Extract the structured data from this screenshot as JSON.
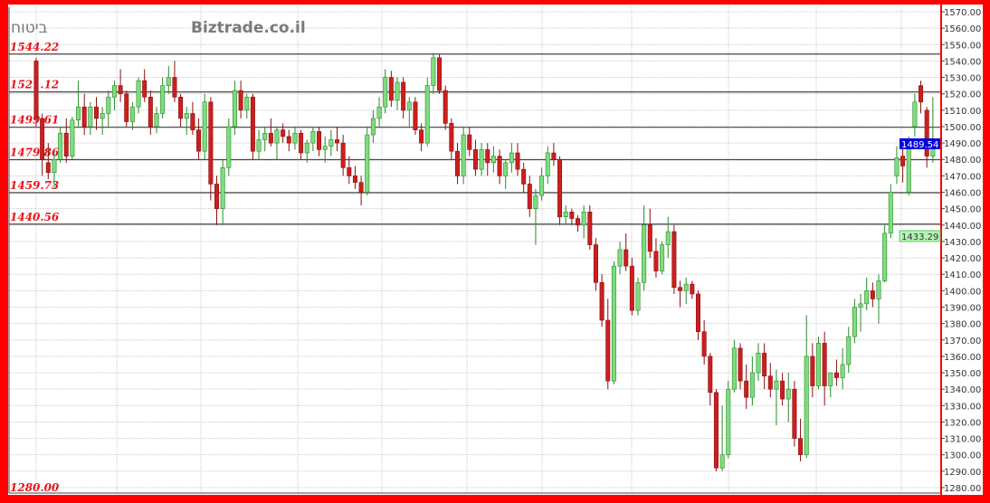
{
  "header": {
    "title": "ביטוח",
    "watermark": "Biztrade.co.il"
  },
  "chart_data": {
    "type": "candlestick",
    "ylim": [
      1280,
      1570
    ],
    "yticks": [
      1570,
      1560,
      1550,
      1540,
      1530,
      1520,
      1510,
      1500,
      1490,
      1480,
      1470,
      1460,
      1450,
      1440,
      1430,
      1420,
      1410,
      1400,
      1390,
      1380,
      1370,
      1360,
      1350,
      1340,
      1330,
      1320,
      1310,
      1300,
      1290,
      1280
    ],
    "grid": true,
    "levels": [
      1544.22,
      1521.12,
      1499.61,
      1479.86,
      1459.73,
      1440.56
    ],
    "level_labels": [
      "1544.22",
      "1521.12",
      "1499.61",
      "1479.86",
      "1459.73",
      "1440.56"
    ],
    "bottom_label": "1280.00",
    "last_price": {
      "label": "1489.54",
      "value": 1489.54,
      "color": "#0000dd"
    },
    "secondary_price": {
      "label": "1433.29",
      "value": 1433.29,
      "color": "#b4f5b4"
    },
    "colors": {
      "up": "#7fdc7f",
      "up_border": "#2a8a2a",
      "down": "#cc1f1f",
      "down_border": "#8a1010",
      "level_line": "#444444",
      "frame": "#ff0000"
    },
    "candles_ohlc": [
      [
        1540,
        1542,
        1500,
        1505
      ],
      [
        1505,
        1508,
        1470,
        1480
      ],
      [
        1478,
        1490,
        1468,
        1472
      ],
      [
        1472,
        1485,
        1462,
        1480
      ],
      [
        1480,
        1500,
        1478,
        1496
      ],
      [
        1496,
        1505,
        1478,
        1482
      ],
      [
        1482,
        1506,
        1480,
        1504
      ],
      [
        1504,
        1528,
        1500,
        1512
      ],
      [
        1512,
        1520,
        1495,
        1500
      ],
      [
        1500,
        1515,
        1495,
        1512
      ],
      [
        1512,
        1518,
        1498,
        1505
      ],
      [
        1505,
        1512,
        1495,
        1508
      ],
      [
        1508,
        1522,
        1500,
        1518
      ],
      [
        1518,
        1528,
        1510,
        1525
      ],
      [
        1525,
        1535,
        1515,
        1520
      ],
      [
        1520,
        1522,
        1500,
        1503
      ],
      [
        1503,
        1515,
        1498,
        1512
      ],
      [
        1512,
        1530,
        1508,
        1528
      ],
      [
        1528,
        1535,
        1515,
        1518
      ],
      [
        1518,
        1522,
        1495,
        1500
      ],
      [
        1500,
        1512,
        1496,
        1508
      ],
      [
        1508,
        1530,
        1505,
        1525
      ],
      [
        1525,
        1537,
        1520,
        1530
      ],
      [
        1530,
        1540,
        1515,
        1518
      ],
      [
        1518,
        1520,
        1500,
        1505
      ],
      [
        1505,
        1512,
        1495,
        1508
      ],
      [
        1508,
        1515,
        1495,
        1498
      ],
      [
        1498,
        1505,
        1480,
        1485
      ],
      [
        1485,
        1520,
        1480,
        1515
      ],
      [
        1515,
        1518,
        1455,
        1465
      ],
      [
        1465,
        1470,
        1440,
        1450
      ],
      [
        1450,
        1480,
        1440,
        1475
      ],
      [
        1475,
        1505,
        1470,
        1500
      ],
      [
        1500,
        1528,
        1495,
        1522
      ],
      [
        1522,
        1528,
        1505,
        1510
      ],
      [
        1510,
        1520,
        1505,
        1518
      ],
      [
        1518,
        1520,
        1480,
        1485
      ],
      [
        1485,
        1498,
        1480,
        1492
      ],
      [
        1492,
        1500,
        1485,
        1496
      ],
      [
        1496,
        1505,
        1488,
        1490
      ],
      [
        1490,
        1500,
        1480,
        1498
      ],
      [
        1498,
        1502,
        1490,
        1494
      ],
      [
        1494,
        1498,
        1485,
        1490
      ],
      [
        1490,
        1500,
        1486,
        1496
      ],
      [
        1496,
        1498,
        1480,
        1484
      ],
      [
        1484,
        1492,
        1478,
        1490
      ],
      [
        1490,
        1500,
        1485,
        1497
      ],
      [
        1497,
        1500,
        1482,
        1486
      ],
      [
        1486,
        1494,
        1478,
        1488
      ],
      [
        1488,
        1498,
        1482,
        1492
      ],
      [
        1492,
        1500,
        1485,
        1490
      ],
      [
        1490,
        1495,
        1470,
        1475
      ],
      [
        1475,
        1482,
        1465,
        1470
      ],
      [
        1470,
        1476,
        1462,
        1466
      ],
      [
        1466,
        1470,
        1452,
        1460
      ],
      [
        1460,
        1500,
        1458,
        1495
      ],
      [
        1495,
        1510,
        1490,
        1505
      ],
      [
        1505,
        1518,
        1500,
        1512
      ],
      [
        1512,
        1535,
        1508,
        1530
      ],
      [
        1530,
        1534,
        1512,
        1516
      ],
      [
        1516,
        1530,
        1510,
        1527
      ],
      [
        1527,
        1530,
        1505,
        1510
      ],
      [
        1510,
        1518,
        1500,
        1515
      ],
      [
        1515,
        1518,
        1495,
        1498
      ],
      [
        1498,
        1502,
        1485,
        1490
      ],
      [
        1490,
        1530,
        1488,
        1525
      ],
      [
        1525,
        1545,
        1520,
        1542
      ],
      [
        1542,
        1544,
        1520,
        1522
      ],
      [
        1522,
        1525,
        1498,
        1502
      ],
      [
        1502,
        1505,
        1480,
        1485
      ],
      [
        1485,
        1490,
        1465,
        1470
      ],
      [
        1470,
        1500,
        1465,
        1495
      ],
      [
        1495,
        1500,
        1482,
        1486
      ],
      [
        1486,
        1492,
        1470,
        1474
      ],
      [
        1474,
        1490,
        1470,
        1486
      ],
      [
        1486,
        1490,
        1470,
        1478
      ],
      [
        1478,
        1488,
        1472,
        1482
      ],
      [
        1482,
        1486,
        1465,
        1470
      ],
      [
        1470,
        1480,
        1462,
        1478
      ],
      [
        1478,
        1490,
        1472,
        1484
      ],
      [
        1484,
        1490,
        1470,
        1474
      ],
      [
        1474,
        1478,
        1460,
        1465
      ],
      [
        1465,
        1470,
        1445,
        1450
      ],
      [
        1450,
        1462,
        1428,
        1458
      ],
      [
        1458,
        1475,
        1455,
        1470
      ],
      [
        1470,
        1488,
        1465,
        1484
      ],
      [
        1484,
        1490,
        1476,
        1480
      ],
      [
        1480,
        1482,
        1440,
        1445
      ],
      [
        1445,
        1452,
        1440,
        1448
      ],
      [
        1448,
        1450,
        1440,
        1444
      ],
      [
        1444,
        1446,
        1436,
        1440
      ],
      [
        1440,
        1452,
        1432,
        1448
      ],
      [
        1448,
        1452,
        1425,
        1428
      ],
      [
        1428,
        1432,
        1400,
        1405
      ],
      [
        1405,
        1410,
        1378,
        1382
      ],
      [
        1382,
        1395,
        1340,
        1345
      ],
      [
        1345,
        1418,
        1343,
        1415
      ],
      [
        1415,
        1430,
        1410,
        1425
      ],
      [
        1425,
        1435,
        1412,
        1415
      ],
      [
        1415,
        1420,
        1385,
        1388
      ],
      [
        1388,
        1408,
        1385,
        1405
      ],
      [
        1405,
        1452,
        1400,
        1440
      ],
      [
        1440,
        1450,
        1420,
        1424
      ],
      [
        1424,
        1432,
        1408,
        1412
      ],
      [
        1412,
        1430,
        1410,
        1428
      ],
      [
        1428,
        1445,
        1420,
        1436
      ],
      [
        1436,
        1440,
        1398,
        1402
      ],
      [
        1402,
        1406,
        1390,
        1400
      ],
      [
        1400,
        1408,
        1392,
        1404
      ],
      [
        1404,
        1406,
        1395,
        1398
      ],
      [
        1398,
        1400,
        1370,
        1375
      ],
      [
        1375,
        1382,
        1355,
        1360
      ],
      [
        1360,
        1362,
        1330,
        1338
      ],
      [
        1338,
        1340,
        1290,
        1292
      ],
      [
        1292,
        1330,
        1290,
        1300
      ],
      [
        1300,
        1345,
        1298,
        1340
      ],
      [
        1340,
        1370,
        1338,
        1365
      ],
      [
        1365,
        1368,
        1340,
        1345
      ],
      [
        1345,
        1355,
        1328,
        1335
      ],
      [
        1335,
        1360,
        1330,
        1350
      ],
      [
        1350,
        1368,
        1345,
        1362
      ],
      [
        1362,
        1368,
        1340,
        1348
      ],
      [
        1348,
        1356,
        1335,
        1340
      ],
      [
        1340,
        1352,
        1318,
        1345
      ],
      [
        1345,
        1350,
        1330,
        1334
      ],
      [
        1334,
        1350,
        1320,
        1340
      ],
      [
        1340,
        1345,
        1305,
        1310
      ],
      [
        1310,
        1322,
        1296,
        1300
      ],
      [
        1300,
        1385,
        1298,
        1360
      ],
      [
        1360,
        1368,
        1335,
        1342
      ],
      [
        1342,
        1372,
        1340,
        1368
      ],
      [
        1368,
        1375,
        1330,
        1342
      ],
      [
        1342,
        1350,
        1335,
        1350
      ],
      [
        1350,
        1358,
        1342,
        1347
      ],
      [
        1347,
        1365,
        1340,
        1355
      ],
      [
        1355,
        1378,
        1350,
        1372
      ],
      [
        1372,
        1395,
        1368,
        1390
      ],
      [
        1390,
        1398,
        1375,
        1392
      ],
      [
        1392,
        1408,
        1388,
        1400
      ],
      [
        1400,
        1405,
        1390,
        1395
      ],
      [
        1395,
        1410,
        1380,
        1406
      ],
      [
        1406,
        1440,
        1405,
        1435
      ],
      [
        1435,
        1465,
        1432,
        1460
      ],
      [
        1470,
        1488,
        1465,
        1481
      ],
      [
        1482,
        1492,
        1466,
        1476
      ],
      [
        1460,
        1494,
        1458,
        1490
      ],
      [
        1500,
        1520,
        1494,
        1515
      ],
      [
        1525,
        1528,
        1508,
        1515
      ],
      [
        1510,
        1512,
        1475,
        1482
      ],
      [
        1482,
        1518,
        1478,
        1489.54
      ]
    ]
  }
}
